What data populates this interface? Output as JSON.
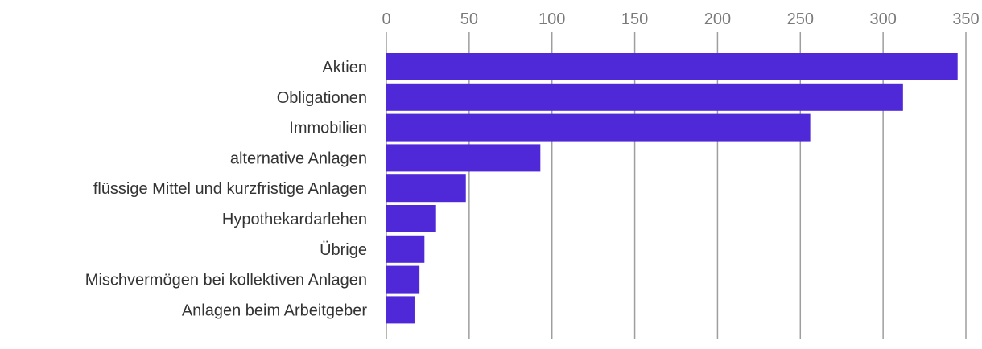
{
  "chart_data": {
    "type": "bar",
    "orientation": "horizontal",
    "title": "",
    "xlabel": "",
    "ylabel": "",
    "xlim": [
      0,
      350
    ],
    "x_ticks": [
      0,
      50,
      100,
      150,
      200,
      250,
      300,
      350
    ],
    "x_tick_labels": [
      "0",
      "50",
      "100",
      "150",
      "200",
      "250",
      "300",
      "350"
    ],
    "x_axis_position": "top",
    "grid": true,
    "legend": "none",
    "bar_color": "#4F28D8",
    "categories": [
      "Aktien",
      "Obligationen",
      "Immobilien",
      "alternative Anlagen",
      "flüssige Mittel und kurzfristige Anlagen",
      "Hypothekardarlehen",
      "Übrige",
      "Mischvermögen bei kollektiven Anlagen",
      "Anlagen beim Arbeitgeber"
    ],
    "values": [
      345,
      312,
      256,
      93,
      48,
      30,
      23,
      20,
      17
    ]
  }
}
